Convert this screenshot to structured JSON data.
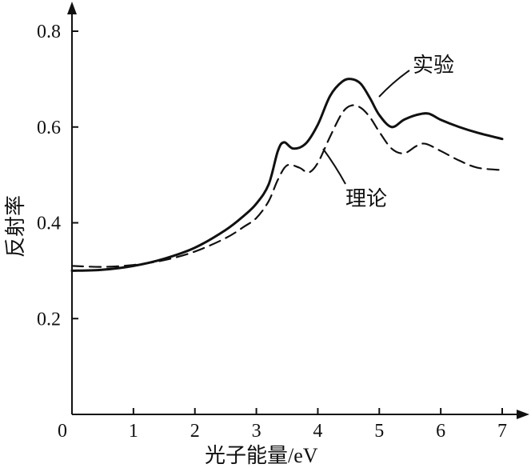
{
  "chart_data": {
    "type": "line",
    "xlabel": "光子能量/eV",
    "ylabel": "反射率",
    "xlim": [
      0,
      7
    ],
    "ylim": [
      0,
      0.8
    ],
    "x_ticks": [
      "0",
      "1",
      "2",
      "3",
      "4",
      "5",
      "6",
      "7"
    ],
    "y_ticks": [
      "0.2",
      "0.4",
      "0.6",
      "0.8"
    ],
    "grid": false,
    "series": [
      {
        "name": "实验",
        "style": "solid",
        "x": [
          0,
          0.5,
          1.0,
          1.5,
          2.0,
          2.5,
          2.8,
          3.0,
          3.2,
          3.35,
          3.45,
          3.6,
          3.8,
          4.0,
          4.2,
          4.4,
          4.55,
          4.7,
          4.85,
          5.0,
          5.2,
          5.4,
          5.6,
          5.8,
          6.0,
          6.3,
          6.6,
          7.0
        ],
        "y": [
          0.3,
          0.302,
          0.31,
          0.325,
          0.348,
          0.385,
          0.415,
          0.44,
          0.48,
          0.55,
          0.568,
          0.555,
          0.565,
          0.605,
          0.665,
          0.695,
          0.7,
          0.69,
          0.66,
          0.625,
          0.6,
          0.615,
          0.625,
          0.628,
          0.615,
          0.6,
          0.588,
          0.575
        ]
      },
      {
        "name": "理论",
        "style": "dashed",
        "x": [
          0,
          0.5,
          1.0,
          1.5,
          2.0,
          2.5,
          2.8,
          3.0,
          3.2,
          3.35,
          3.5,
          3.7,
          3.85,
          4.0,
          4.2,
          4.4,
          4.55,
          4.7,
          4.85,
          5.0,
          5.2,
          5.4,
          5.6,
          5.75,
          6.0,
          6.3,
          6.6,
          7.0
        ],
        "y": [
          0.31,
          0.308,
          0.312,
          0.322,
          0.34,
          0.368,
          0.392,
          0.41,
          0.445,
          0.49,
          0.52,
          0.515,
          0.505,
          0.525,
          0.58,
          0.63,
          0.645,
          0.64,
          0.62,
          0.59,
          0.555,
          0.545,
          0.56,
          0.565,
          0.55,
          0.53,
          0.515,
          0.51
        ]
      }
    ]
  }
}
